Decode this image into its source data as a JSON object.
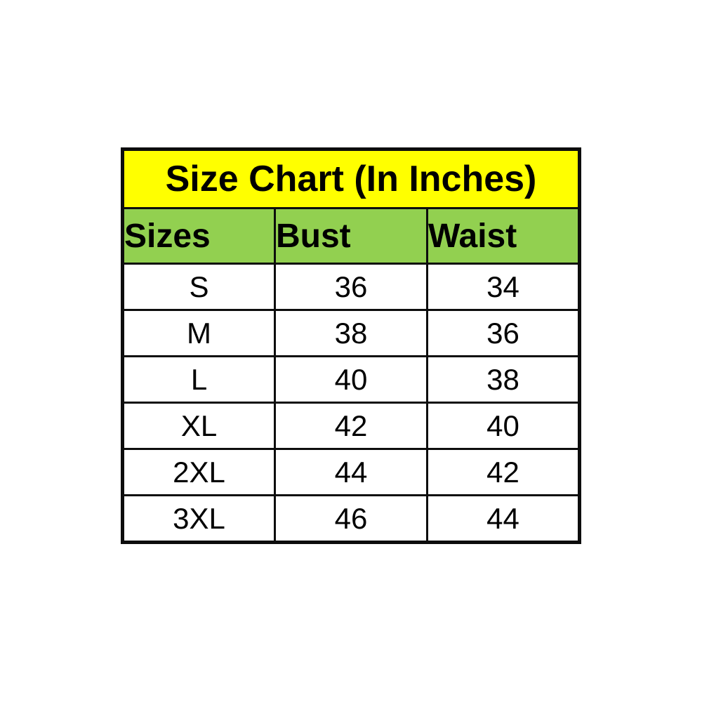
{
  "page": {
    "background_color": "#ffffff",
    "title_bg_color": "#ffff00",
    "header_bg_color": "#92d050",
    "border_color": "#0d0d0d",
    "text_color": "#000000"
  },
  "table": {
    "title": "Size Chart (In Inches)",
    "columns": [
      "Sizes",
      "Bust",
      "Waist"
    ],
    "rows": [
      {
        "size": "S",
        "bust": "36",
        "waist": "34"
      },
      {
        "size": "M",
        "bust": "38",
        "waist": "36"
      },
      {
        "size": "L",
        "bust": "40",
        "waist": "38"
      },
      {
        "size": "XL",
        "bust": "42",
        "waist": "40"
      },
      {
        "size": "2XL",
        "bust": "44",
        "waist": "42"
      },
      {
        "size": "3XL",
        "bust": "46",
        "waist": "44"
      }
    ]
  },
  "chart_data": {
    "type": "table",
    "title": "Size Chart (In Inches)",
    "columns": [
      "Sizes",
      "Bust",
      "Waist"
    ],
    "rows": [
      [
        "S",
        36,
        34
      ],
      [
        "M",
        38,
        36
      ],
      [
        "L",
        40,
        38
      ],
      [
        "XL",
        42,
        40
      ],
      [
        "2XL",
        44,
        42
      ],
      [
        "3XL",
        46,
        44
      ]
    ]
  }
}
